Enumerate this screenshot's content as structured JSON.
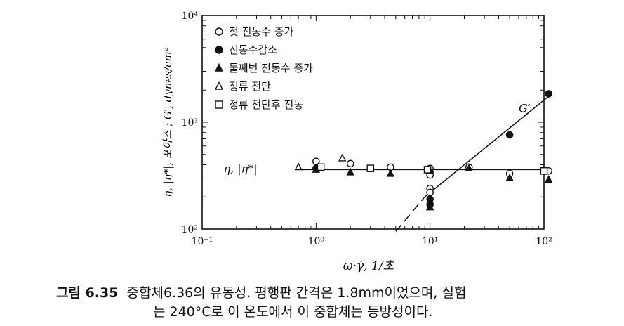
{
  "chart_data": {
    "type": "scatter",
    "title": "",
    "xlabel": "ω·γ̇, 1/초",
    "ylabel": "η, |η*|, 포아즈 ; G′, dynes/cm²",
    "x_scale": "log",
    "y_scale": "log",
    "xlim": [
      0.1,
      100
    ],
    "ylim": [
      100,
      10000
    ],
    "grid": false,
    "legend_position": "top-left",
    "x_tick_labels": [
      {
        "value": 0.1,
        "label": "10⁻¹"
      },
      {
        "value": 1,
        "label": "10⁰"
      },
      {
        "value": 10,
        "label": "10¹"
      },
      {
        "value": 100,
        "label": "10²"
      }
    ],
    "y_tick_labels": [
      {
        "value": 100,
        "label": "10²"
      },
      {
        "value": 1000,
        "label": "10³"
      },
      {
        "value": 10000,
        "label": "10⁴"
      }
    ],
    "series": [
      {
        "name": "첫 진동수 증가",
        "marker": "circle-open",
        "x": [
          1.0,
          2.0,
          4.5,
          10,
          10,
          10,
          10,
          10,
          22,
          50,
          110
        ],
        "y": [
          430,
          410,
          380,
          370,
          340,
          320,
          240,
          220,
          380,
          330,
          350
        ]
      },
      {
        "name": "진동수감소",
        "marker": "circle-filled",
        "x": [
          1.0,
          10,
          10,
          50,
          110
        ],
        "y": [
          370,
          190,
          170,
          760,
          1850
        ]
      },
      {
        "name": "둘째번 진동수 증가",
        "marker": "triangle-filled",
        "x": [
          1.0,
          2.0,
          4.5,
          10,
          10,
          22,
          50,
          110
        ],
        "y": [
          360,
          340,
          330,
          350,
          160,
          370,
          300,
          290
        ]
      },
      {
        "name": "정류 전단",
        "marker": "triangle-open",
        "x": [
          0.7,
          1.7
        ],
        "y": [
          380,
          460
        ]
      },
      {
        "name": "정류 전단후 진동",
        "marker": "square-open",
        "x": [
          1.1,
          3.0,
          9.5,
          100
        ],
        "y": [
          380,
          370,
          360,
          350
        ]
      }
    ],
    "lines": [
      {
        "name": "η, |η*|",
        "style": "solid",
        "x": [
          0.7,
          110
        ],
        "y": [
          360,
          360
        ]
      },
      {
        "name": "G′",
        "style": "solid",
        "x": [
          9,
          110
        ],
        "y": [
          200,
          1750
        ]
      },
      {
        "name": "",
        "style": "dashed",
        "x": [
          5,
          9
        ],
        "y": [
          95,
          200
        ]
      }
    ],
    "annotations": [
      {
        "text": "η, |η*|",
        "at_x": 0.25,
        "at_y": 370
      },
      {
        "text": "G′",
        "at_x": 60,
        "at_y": 1100
      }
    ]
  },
  "caption": {
    "label": "그림 6.35",
    "line1": "중합체6.36의 유동성. 평행판 간격은 1.8mm이었으며, 실험",
    "line2": "는 240°C로 이 온도에서 이 중합체는 등방성이다."
  },
  "colors": {
    "ink": "#111111",
    "background": "#ffffff"
  }
}
